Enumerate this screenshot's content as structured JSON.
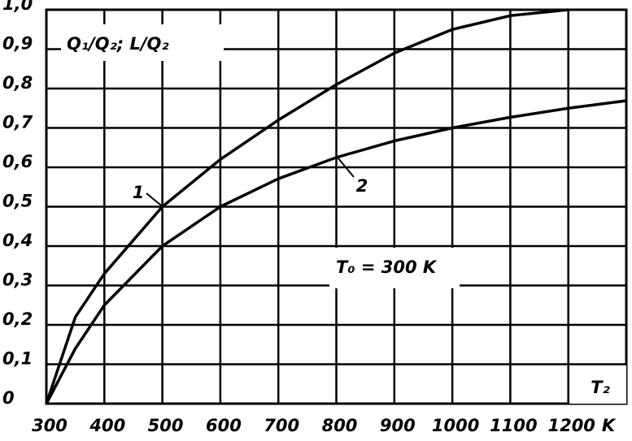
{
  "chart_data": {
    "type": "line",
    "y_label": "Q₁/Q₂; L/Q₂",
    "annotation": "T₀ = 300 K",
    "x_label": "T₂",
    "x_unit": "K",
    "x": [
      300,
      350,
      400,
      500,
      600,
      700,
      800,
      900,
      1000,
      1100,
      1200,
      1300
    ],
    "series": [
      {
        "name": "1",
        "color": "#000000",
        "values": [
          0,
          0.22,
          0.33,
          0.5,
          0.62,
          0.72,
          0.81,
          0.89,
          0.95,
          0.985,
          1.0,
          null
        ]
      },
      {
        "name": "2",
        "color": "#000000",
        "values": [
          0,
          0.14,
          0.25,
          0.4,
          0.5,
          0.571,
          0.625,
          0.667,
          0.7,
          0.727,
          0.75,
          0.769
        ]
      }
    ],
    "xlim": [
      300,
      1300
    ],
    "ylim": [
      0,
      1.0
    ],
    "xticks": [
      300,
      400,
      500,
      600,
      700,
      800,
      900,
      1000,
      1100,
      1200
    ],
    "yticks": [
      {
        "value": 0,
        "label": "0"
      },
      {
        "value": 0.1,
        "label": "0,1"
      },
      {
        "value": 0.2,
        "label": "0,2"
      },
      {
        "value": 0.3,
        "label": "0,3"
      },
      {
        "value": 0.4,
        "label": "0,4"
      },
      {
        "value": 0.5,
        "label": "0,5"
      },
      {
        "value": 0.6,
        "label": "0,6"
      },
      {
        "value": 0.7,
        "label": "0,7"
      },
      {
        "value": 0.8,
        "label": "0,8"
      },
      {
        "value": 0.9,
        "label": "0,9"
      },
      {
        "value": 1.0,
        "label": "1,0"
      }
    ],
    "grid": true
  }
}
